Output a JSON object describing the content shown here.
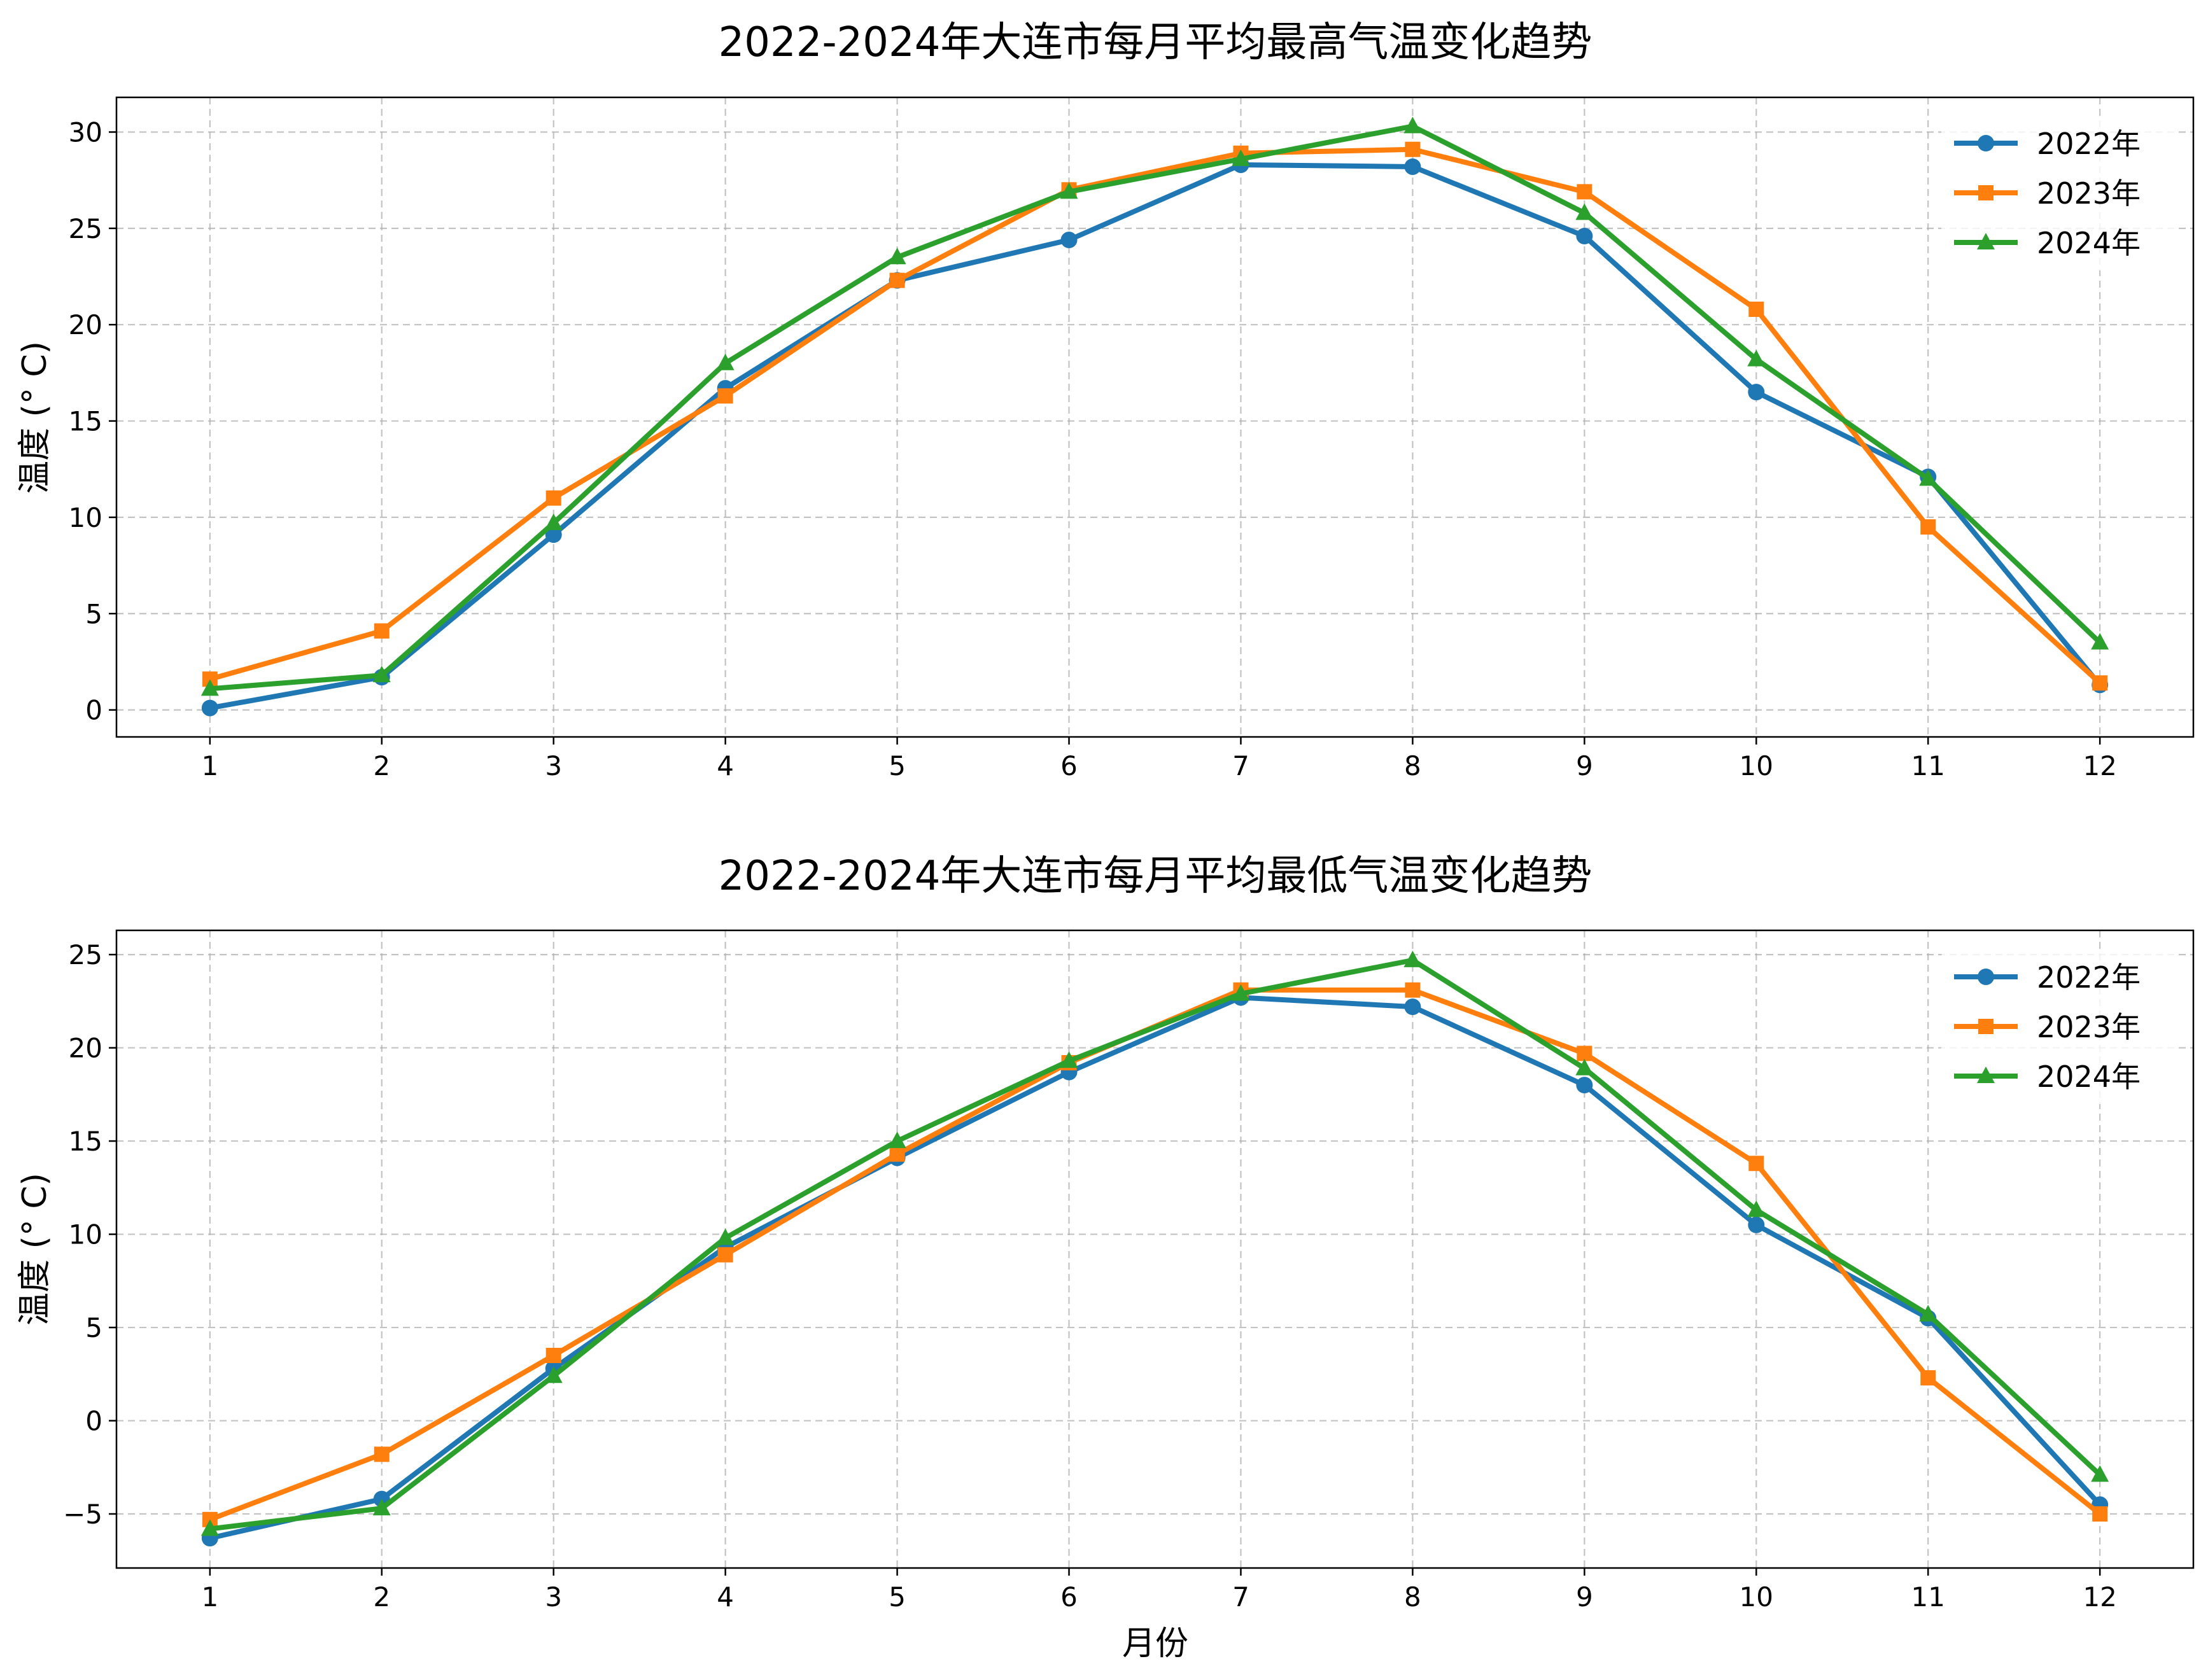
{
  "chart_data": [
    {
      "type": "line",
      "title": "2022-2024年大连市每月平均最高气温变化趋势",
      "xlabel": "",
      "ylabel": "温度 (° C)",
      "categories": [
        "1",
        "2",
        "3",
        "4",
        "5",
        "6",
        "7",
        "8",
        "9",
        "10",
        "11",
        "12"
      ],
      "ylim": [
        -1.4,
        31.8
      ],
      "yticks": [
        "0",
        "5",
        "10",
        "15",
        "20",
        "25",
        "30"
      ],
      "grid": true,
      "legend_position": "top-right",
      "series": [
        {
          "name": "2022年",
          "color": "#1f77b4",
          "marker": "circle",
          "values": [
            0.1,
            1.7,
            9.1,
            16.7,
            22.3,
            24.4,
            28.3,
            28.2,
            24.6,
            16.5,
            12.1,
            1.3
          ]
        },
        {
          "name": "2023年",
          "color": "#ff7f0e",
          "marker": "square",
          "values": [
            1.6,
            4.1,
            11.0,
            16.3,
            22.3,
            27.0,
            28.9,
            29.1,
            26.9,
            20.8,
            9.5,
            1.4
          ]
        },
        {
          "name": "2024年",
          "color": "#2ca02c",
          "marker": "triangle",
          "values": [
            1.1,
            1.8,
            9.7,
            18.0,
            23.5,
            26.9,
            28.6,
            30.3,
            25.8,
            18.2,
            12.0,
            3.5
          ]
        }
      ]
    },
    {
      "type": "line",
      "title": "2022-2024年大连市每月平均最低气温变化趋势",
      "xlabel": "月份",
      "ylabel": "温度 (° C)",
      "categories": [
        "1",
        "2",
        "3",
        "4",
        "5",
        "6",
        "7",
        "8",
        "9",
        "10",
        "11",
        "12"
      ],
      "ylim": [
        -7.9,
        26.3
      ],
      "yticks": [
        "−5",
        "0",
        "5",
        "10",
        "15",
        "20",
        "25"
      ],
      "grid": true,
      "legend_position": "top-right",
      "series": [
        {
          "name": "2022年",
          "color": "#1f77b4",
          "marker": "circle",
          "values": [
            -6.3,
            -4.2,
            2.8,
            9.3,
            14.1,
            18.7,
            22.7,
            22.2,
            18.0,
            10.5,
            5.5,
            -4.5
          ]
        },
        {
          "name": "2023年",
          "color": "#ff7f0e",
          "marker": "square",
          "values": [
            -5.3,
            -1.8,
            3.5,
            8.9,
            14.3,
            19.2,
            23.1,
            23.1,
            19.7,
            13.8,
            2.3,
            -5.0
          ]
        },
        {
          "name": "2024年",
          "color": "#2ca02c",
          "marker": "triangle",
          "values": [
            -5.8,
            -4.7,
            2.4,
            9.8,
            15.0,
            19.3,
            22.9,
            24.7,
            18.9,
            11.3,
            5.7,
            -2.9
          ]
        }
      ]
    }
  ]
}
